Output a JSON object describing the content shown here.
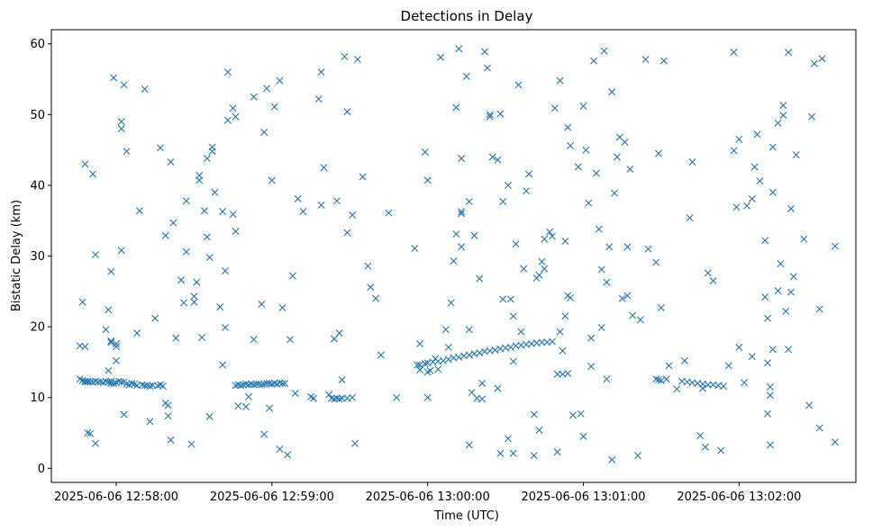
{
  "chart_data": {
    "type": "scatter",
    "title": "Detections in Delay",
    "xlabel": "Time (UTC)",
    "ylabel": "Bistatic Delay (km)",
    "xlim": [
      "2025-06-06 12:57:35",
      "2025-06-06 13:02:45"
    ],
    "ylim": [
      -2,
      62
    ],
    "x_ticks": [
      "2025-06-06 12:58:00",
      "2025-06-06 12:59:00",
      "2025-06-06 13:00:00",
      "2025-06-06 13:01:00",
      "2025-06-06 13:02:00"
    ],
    "y_ticks": [
      0,
      10,
      20,
      30,
      40,
      50,
      60
    ],
    "grid": false,
    "marker": "x",
    "color": "#1f77b4",
    "series": [
      {
        "x": [
          "2025-06-06 12:57:46",
          "2025-06-06 12:57:47",
          "2025-06-06 12:57:48",
          "2025-06-06 12:57:48",
          "2025-06-06 12:57:49",
          "2025-06-06 12:57:49",
          "2025-06-06 12:57:50",
          "2025-06-06 12:57:51",
          "2025-06-06 12:57:52",
          "2025-06-06 12:57:53",
          "2025-06-06 12:57:54",
          "2025-06-06 12:57:55",
          "2025-06-06 12:57:56",
          "2025-06-06 12:57:57",
          "2025-06-06 12:57:58",
          "2025-06-06 12:57:58",
          "2025-06-06 12:57:59",
          "2025-06-06 12:58:00",
          "2025-06-06 12:58:01",
          "2025-06-06 12:58:02",
          "2025-06-06 12:58:03",
          "2025-06-06 12:58:04",
          "2025-06-06 12:58:05",
          "2025-06-06 12:58:06",
          "2025-06-06 12:58:07",
          "2025-06-06 12:58:08",
          "2025-06-06 12:58:10",
          "2025-06-06 12:58:11",
          "2025-06-06 12:58:12",
          "2025-06-06 12:58:13",
          "2025-06-06 12:58:14",
          "2025-06-06 12:58:16",
          "2025-06-06 12:58:17",
          "2025-06-06 12:58:18",
          "2025-06-06 12:58:46",
          "2025-06-06 12:58:47",
          "2025-06-06 12:58:48",
          "2025-06-06 12:58:49",
          "2025-06-06 12:58:50",
          "2025-06-06 12:58:51",
          "2025-06-06 12:58:52",
          "2025-06-06 12:58:53",
          "2025-06-06 12:58:54",
          "2025-06-06 12:58:55",
          "2025-06-06 12:58:56",
          "2025-06-06 12:58:57",
          "2025-06-06 12:58:58",
          "2025-06-06 12:58:59",
          "2025-06-06 12:59:00",
          "2025-06-06 12:59:01",
          "2025-06-06 12:59:02",
          "2025-06-06 12:59:03",
          "2025-06-06 12:59:04",
          "2025-06-06 12:59:05",
          "2025-06-06 12:59:23",
          "2025-06-06 12:59:24",
          "2025-06-06 12:59:25",
          "2025-06-06 12:59:26",
          "2025-06-06 12:59:27",
          "2025-06-06 12:59:29",
          "2025-06-06 12:59:31",
          "2025-06-06 12:59:56",
          "2025-06-06 12:59:57",
          "2025-06-06 12:59:59",
          "2025-06-06 13:00:00",
          "2025-06-06 13:00:02",
          "2025-06-06 13:00:04",
          "2025-06-06 13:00:06",
          "2025-06-06 13:00:08",
          "2025-06-06 13:00:10",
          "2025-06-06 13:00:12",
          "2025-06-06 13:00:14",
          "2025-06-06 13:00:16",
          "2025-06-06 13:00:18",
          "2025-06-06 13:00:20",
          "2025-06-06 13:00:22",
          "2025-06-06 13:00:24",
          "2025-06-06 13:00:26",
          "2025-06-06 13:00:28",
          "2025-06-06 13:00:30",
          "2025-06-06 13:00:32",
          "2025-06-06 13:00:34",
          "2025-06-06 13:00:36",
          "2025-06-06 13:00:38",
          "2025-06-06 13:00:40",
          "2025-06-06 13:00:42",
          "2025-06-06 13:00:44",
          "2025-06-06 13:00:46",
          "2025-06-06 13:00:48",
          "2025-06-06 13:00:50",
          "2025-06-06 13:00:52",
          "2025-06-06 13:00:54",
          "2025-06-06 13:01:28",
          "2025-06-06 13:01:29",
          "2025-06-06 13:01:30",
          "2025-06-06 13:01:38",
          "2025-06-06 13:01:40",
          "2025-06-06 13:01:42",
          "2025-06-06 13:01:44",
          "2025-06-06 13:01:46",
          "2025-06-06 13:01:48",
          "2025-06-06 13:01:50",
          "2025-06-06 13:01:52",
          "2025-06-06 13:01:54",
          "2025-06-06 13:01:56",
          "2025-06-06 13:01:58",
          "2025-06-06 13:02:00",
          "2025-06-06 12:57:46",
          "2025-06-06 12:57:47",
          "2025-06-06 12:57:48",
          "2025-06-06 12:57:48",
          "2025-06-06 12:57:49",
          "2025-06-06 12:57:50",
          "2025-06-06 12:57:51",
          "2025-06-06 12:57:52",
          "2025-06-06 12:57:52",
          "2025-06-06 12:57:56",
          "2025-06-06 12:57:57",
          "2025-06-06 12:57:57",
          "2025-06-06 12:57:58",
          "2025-06-06 12:57:58",
          "2025-06-06 12:57:58",
          "2025-06-06 12:57:59",
          "2025-06-06 12:58:00",
          "2025-06-06 12:58:00",
          "2025-06-06 12:58:00",
          "2025-06-06 12:58:02",
          "2025-06-06 12:58:02",
          "2025-06-06 12:58:02",
          "2025-06-06 12:58:03",
          "2025-06-06 12:58:03",
          "2025-06-06 12:58:04",
          "2025-06-06 12:58:08",
          "2025-06-06 12:58:09",
          "2025-06-06 12:58:11",
          "2025-06-06 12:58:13",
          "2025-06-06 12:58:15",
          "2025-06-06 12:58:17",
          "2025-06-06 12:58:19",
          "2025-06-06 12:58:19",
          "2025-06-06 12:58:20",
          "2025-06-06 12:58:20",
          "2025-06-06 12:58:21",
          "2025-06-06 12:58:21",
          "2025-06-06 12:58:22",
          "2025-06-06 12:58:23",
          "2025-06-06 12:58:25",
          "2025-06-06 12:58:26",
          "2025-06-06 12:58:27",
          "2025-06-06 12:58:27",
          "2025-06-06 12:58:29",
          "2025-06-06 12:58:30",
          "2025-06-06 12:58:30",
          "2025-06-06 12:58:31",
          "2025-06-06 12:58:32",
          "2025-06-06 12:58:32",
          "2025-06-06 12:58:33",
          "2025-06-06 12:58:34",
          "2025-06-06 12:58:35",
          "2025-06-06 12:58:35",
          "2025-06-06 12:58:36",
          "2025-06-06 12:58:36",
          "2025-06-06 12:58:37",
          "2025-06-06 12:58:37",
          "2025-06-06 12:58:38",
          "2025-06-06 12:58:40",
          "2025-06-06 12:58:41",
          "2025-06-06 12:58:41",
          "2025-06-06 12:58:42",
          "2025-06-06 12:58:42",
          "2025-06-06 12:58:43",
          "2025-06-06 12:58:43",
          "2025-06-06 12:58:45",
          "2025-06-06 12:58:45",
          "2025-06-06 12:58:46",
          "2025-06-06 12:58:46",
          "2025-06-06 12:58:47",
          "2025-06-06 12:58:50",
          "2025-06-06 12:58:51",
          "2025-06-06 12:58:53",
          "2025-06-06 12:58:53",
          "2025-06-06 12:58:56",
          "2025-06-06 12:58:57",
          "2025-06-06 12:58:57",
          "2025-06-06 12:58:58",
          "2025-06-06 12:58:59",
          "2025-06-06 12:59:00",
          "2025-06-06 12:59:01",
          "2025-06-06 12:59:03",
          "2025-06-06 12:59:03",
          "2025-06-06 12:59:04",
          "2025-06-06 12:59:06",
          "2025-06-06 12:59:07",
          "2025-06-06 12:59:08",
          "2025-06-06 12:59:09",
          "2025-06-06 12:59:10",
          "2025-06-06 12:59:12",
          "2025-06-06 12:59:15",
          "2025-06-06 12:59:16",
          "2025-06-06 12:59:18",
          "2025-06-06 12:59:19",
          "2025-06-06 12:59:19",
          "2025-06-06 12:59:20",
          "2025-06-06 12:59:22",
          "2025-06-06 12:59:24",
          "2025-06-06 12:59:25",
          "2025-06-06 12:59:26",
          "2025-06-06 12:59:27",
          "2025-06-06 12:59:28",
          "2025-06-06 12:59:29",
          "2025-06-06 12:59:29",
          "2025-06-06 12:59:31",
          "2025-06-06 12:59:32",
          "2025-06-06 12:59:33",
          "2025-06-06 12:59:35",
          "2025-06-06 12:59:37",
          "2025-06-06 12:59:38",
          "2025-06-06 12:59:40",
          "2025-06-06 12:59:42",
          "2025-06-06 12:59:45",
          "2025-06-06 12:59:48",
          "2025-06-06 12:59:55",
          "2025-06-06 12:59:57",
          "2025-06-06 12:59:57",
          "2025-06-06 12:59:59",
          "2025-06-06 13:00:00",
          "2025-06-06 13:00:00",
          "2025-06-06 13:00:00",
          "2025-06-06 13:00:01",
          "2025-06-06 13:00:03",
          "2025-06-06 13:00:04",
          "2025-06-06 13:00:05",
          "2025-06-06 13:00:07",
          "2025-06-06 13:00:08",
          "2025-06-06 13:00:09",
          "2025-06-06 13:00:10",
          "2025-06-06 13:00:11",
          "2025-06-06 13:00:11",
          "2025-06-06 13:00:12",
          "2025-06-06 13:00:13",
          "2025-06-06 13:00:13",
          "2025-06-06 13:00:13",
          "2025-06-06 13:00:13",
          "2025-06-06 13:00:15",
          "2025-06-06 13:00:16",
          "2025-06-06 13:00:16",
          "2025-06-06 13:00:16",
          "2025-06-06 13:00:17",
          "2025-06-06 13:00:18",
          "2025-06-06 13:00:19",
          "2025-06-06 13:00:20",
          "2025-06-06 13:00:21",
          "2025-06-06 13:00:21",
          "2025-06-06 13:00:22",
          "2025-06-06 13:00:23",
          "2025-06-06 13:00:24",
          "2025-06-06 13:00:24",
          "2025-06-06 13:00:25",
          "2025-06-06 13:00:27",
          "2025-06-06 13:00:27",
          "2025-06-06 13:00:28",
          "2025-06-06 13:00:28",
          "2025-06-06 13:00:29",
          "2025-06-06 13:00:29",
          "2025-06-06 13:00:31",
          "2025-06-06 13:00:31",
          "2025-06-06 13:00:32",
          "2025-06-06 13:00:33",
          "2025-06-06 13:00:33",
          "2025-06-06 13:00:33",
          "2025-06-06 13:00:34",
          "2025-06-06 13:00:35",
          "2025-06-06 13:00:36",
          "2025-06-06 13:00:37",
          "2025-06-06 13:00:38",
          "2025-06-06 13:00:39",
          "2025-06-06 13:00:41",
          "2025-06-06 13:00:41",
          "2025-06-06 13:00:42",
          "2025-06-06 13:00:43",
          "2025-06-06 13:00:43",
          "2025-06-06 13:00:44",
          "2025-06-06 13:00:45",
          "2025-06-06 13:00:45",
          "2025-06-06 13:00:47",
          "2025-06-06 13:00:48",
          "2025-06-06 13:00:49",
          "2025-06-06 13:00:50",
          "2025-06-06 13:00:51",
          "2025-06-06 13:00:51",
          "2025-06-06 13:00:52",
          "2025-06-06 13:00:53",
          "2025-06-06 13:00:53",
          "2025-06-06 13:00:54",
          "2025-06-06 13:00:54",
          "2025-06-06 13:00:55",
          "2025-06-06 13:00:55",
          "2025-06-06 13:00:56",
          "2025-06-06 13:00:58",
          "2025-06-06 13:00:59",
          "2025-06-06 13:01:00",
          "2025-06-06 13:01:00",
          "2025-06-06 13:01:01",
          "2025-06-06 13:01:02",
          "2025-06-06 13:01:03",
          "2025-06-06 13:01:03",
          "2025-06-06 13:01:04",
          "2025-06-06 13:01:05",
          "2025-06-06 13:01:06",
          "2025-06-06 13:01:07",
          "2025-06-06 13:01:07",
          "2025-06-06 13:01:08",
          "2025-06-06 13:01:09",
          "2025-06-06 13:01:09",
          "2025-06-06 13:01:10",
          "2025-06-06 13:01:11",
          "2025-06-06 13:01:11",
          "2025-06-06 13:01:12",
          "2025-06-06 13:01:13",
          "2025-06-06 13:01:14",
          "2025-06-06 13:01:15",
          "2025-06-06 13:01:16",
          "2025-06-06 13:01:17",
          "2025-06-06 13:01:17",
          "2025-06-06 13:01:18",
          "2025-06-06 13:01:19",
          "2025-06-06 13:01:21",
          "2025-06-06 13:01:22",
          "2025-06-06 13:01:24",
          "2025-06-06 13:01:25",
          "2025-06-06 13:01:28",
          "2025-06-06 13:01:29",
          "2025-06-06 13:01:30",
          "2025-06-06 13:01:31",
          "2025-06-06 13:01:32",
          "2025-06-06 13:01:33",
          "2025-06-06 13:01:36",
          "2025-06-06 13:01:39",
          "2025-06-06 13:01:41",
          "2025-06-06 13:01:42",
          "2025-06-06 13:01:45",
          "2025-06-06 13:01:46",
          "2025-06-06 13:01:47",
          "2025-06-06 13:01:48",
          "2025-06-06 13:01:50",
          "2025-06-06 13:01:53",
          "2025-06-06 13:01:58",
          "2025-06-06 13:01:59",
          "2025-06-06 13:02:00",
          "2025-06-06 13:02:02",
          "2025-06-06 13:02:03",
          "2025-06-06 13:02:05",
          "2025-06-06 13:02:05",
          "2025-06-06 13:02:06",
          "2025-06-06 13:02:07",
          "2025-06-06 13:02:08",
          "2025-06-06 13:02:10",
          "2025-06-06 13:02:10",
          "2025-06-06 13:02:11",
          "2025-06-06 13:02:11",
          "2025-06-06 13:02:11",
          "2025-06-06 13:02:12",
          "2025-06-06 13:02:12",
          "2025-06-06 13:02:12",
          "2025-06-06 13:02:13",
          "2025-06-06 13:02:13",
          "2025-06-06 13:02:13",
          "2025-06-06 13:02:15",
          "2025-06-06 13:02:15",
          "2025-06-06 13:02:16",
          "2025-06-06 13:02:17",
          "2025-06-06 13:02:17",
          "2025-06-06 13:02:18",
          "2025-06-06 13:02:19",
          "2025-06-06 13:02:19",
          "2025-06-06 13:02:20",
          "2025-06-06 13:02:20",
          "2025-06-06 13:02:21",
          "2025-06-06 13:02:22",
          "2025-06-06 13:02:25",
          "2025-06-06 13:02:27",
          "2025-06-06 13:02:28",
          "2025-06-06 13:02:29",
          "2025-06-06 13:02:31",
          "2025-06-06 13:02:31",
          "2025-06-06 13:02:32",
          "2025-06-06 13:02:37",
          "2025-06-06 13:02:37"
        ],
        "y": [
          12.6,
          12.4,
          12.2,
          12.3,
          12.2,
          12.3,
          12.2,
          12.2,
          12.3,
          12.2,
          12.2,
          12.1,
          12.3,
          12.2,
          12.0,
          12.3,
          12.0,
          12.1,
          12.3,
          12.2,
          12.2,
          11.9,
          11.8,
          12.0,
          11.9,
          11.7,
          11.8,
          11.7,
          11.7,
          11.6,
          11.7,
          11.7,
          11.8,
          11.6,
          11.7,
          11.8,
          11.7,
          11.8,
          11.9,
          11.8,
          11.9,
          11.8,
          11.9,
          11.9,
          11.8,
          11.9,
          12.0,
          12.0,
          11.9,
          12.0,
          11.9,
          12.1,
          12.0,
          12.0,
          9.9,
          9.8,
          9.9,
          9.8,
          9.9,
          9.9,
          10.0,
          14.6,
          14.6,
          14.8,
          14.9,
          15.0,
          15.1,
          15.2,
          15.4,
          15.6,
          15.7,
          15.9,
          16.0,
          16.2,
          16.3,
          16.5,
          16.6,
          16.7,
          16.9,
          17.0,
          17.1,
          17.3,
          17.4,
          17.5,
          17.6,
          17.7,
          17.8,
          17.8,
          17.9,
          13.3,
          13.3,
          13.4,
          12.6,
          12.5,
          12.4,
          12.3,
          12.2,
          12.1,
          12.0,
          11.9,
          11.8,
          11.8,
          11.7,
          11.6,
          14.5,
          44.9,
          17.1,
          17.3,
          23.5,
          17.2,
          43.0,
          5.0,
          4.9,
          41.6,
          30.2,
          3.5,
          19.6,
          22.4,
          13.8,
          27.8,
          18.0,
          17.8,
          55.2,
          17.6,
          17.2,
          15.2,
          49.0,
          48.0,
          30.8,
          54.2,
          7.6,
          44.8,
          19.1,
          36.4,
          53.6,
          6.6,
          21.2,
          45.3,
          32.9,
          9.2,
          8.9,
          7.4,
          43.3,
          4.0,
          34.7,
          18.4,
          26.6,
          23.4,
          37.8,
          30.6,
          3.4,
          23.5,
          24.3,
          26.3,
          41.4,
          40.7,
          18.5,
          36.4,
          43.8,
          32.7,
          7.3,
          29.8,
          45.4,
          44.8,
          39.0,
          22.8,
          36.3,
          14.6,
          27.9,
          19.9,
          56.0,
          49.2,
          35.9,
          50.9,
          49.7,
          33.5,
          8.8,
          8.7,
          10.1,
          52.5,
          18.2,
          23.2,
          4.8,
          47.5,
          53.7,
          8.5,
          40.7,
          51.1,
          54.8,
          2.7,
          22.7,
          1.9,
          18.2,
          27.2,
          10.6,
          38.1,
          36.3,
          10.1,
          9.9,
          52.2,
          37.2,
          56.0,
          42.5,
          10.4,
          18.3,
          37.8,
          19.1,
          12.5,
          58.2,
          50.4,
          33.3,
          35.8,
          3.5,
          57.8,
          41.2,
          28.6,
          25.6,
          24.0,
          16.0,
          36.1,
          10.0,
          31.1,
          13.9,
          17.6,
          44.7,
          40.7,
          10.0,
          13.6,
          13.8,
          15.5,
          14.0,
          58.1,
          19.6,
          17.1,
          23.4,
          29.3,
          51.0,
          33.1,
          59.3,
          36.3,
          36.0,
          43.8,
          31.3,
          55.4,
          3.3,
          37.7,
          19.6,
          10.7,
          32.9,
          9.9,
          26.8,
          12.0,
          9.8,
          58.9,
          56.6,
          50.0,
          49.7,
          44.0,
          43.6,
          11.3,
          50.1,
          2.1,
          23.9,
          37.7,
          40.0,
          4.2,
          23.9,
          2.1,
          15.1,
          21.5,
          31.7,
          54.2,
          19.3,
          28.2,
          39.2,
          41.6,
          1.8,
          7.6,
          26.9,
          27.3,
          5.4,
          29.2,
          28.2,
          32.4,
          33.4,
          32.8,
          50.9,
          2.3,
          19.3,
          54.8,
          16.6,
          32.1,
          21.5,
          24.4,
          48.2,
          45.6,
          24.1,
          7.5,
          42.6,
          7.7,
          4.5,
          51.2,
          45.0,
          37.5,
          14.4,
          18.4,
          57.6,
          41.7,
          33.8,
          28.1,
          19.9,
          59.0,
          12.6,
          26.3,
          31.3,
          53.2,
          1.2,
          38.9,
          44.0,
          46.8,
          24.0,
          46.1,
          24.4,
          31.3,
          42.3,
          21.6,
          1.8,
          21.0,
          57.8,
          31.0,
          29.1,
          44.5,
          22.7,
          57.6,
          12.6,
          14.5,
          11.2,
          15.2,
          35.4,
          43.3,
          4.6,
          11.3,
          3.0,
          27.6,
          26.5,
          2.5,
          58.8,
          36.9,
          46.5,
          12.1,
          37.1,
          15.8,
          38.1,
          42.6,
          47.2,
          40.6,
          32.2,
          24.2,
          14.9,
          21.2,
          7.7,
          3.3,
          10.3,
          11.5,
          45.4,
          16.8,
          39.0,
          48.8,
          25.1,
          28.9,
          49.9,
          51.3,
          22.2,
          16.8,
          58.8,
          24.9,
          36.7,
          27.1,
          44.3,
          32.4,
          8.9,
          49.7,
          57.2,
          5.7,
          22.5,
          57.9,
          31.4,
          3.7
        ]
      }
    ]
  }
}
